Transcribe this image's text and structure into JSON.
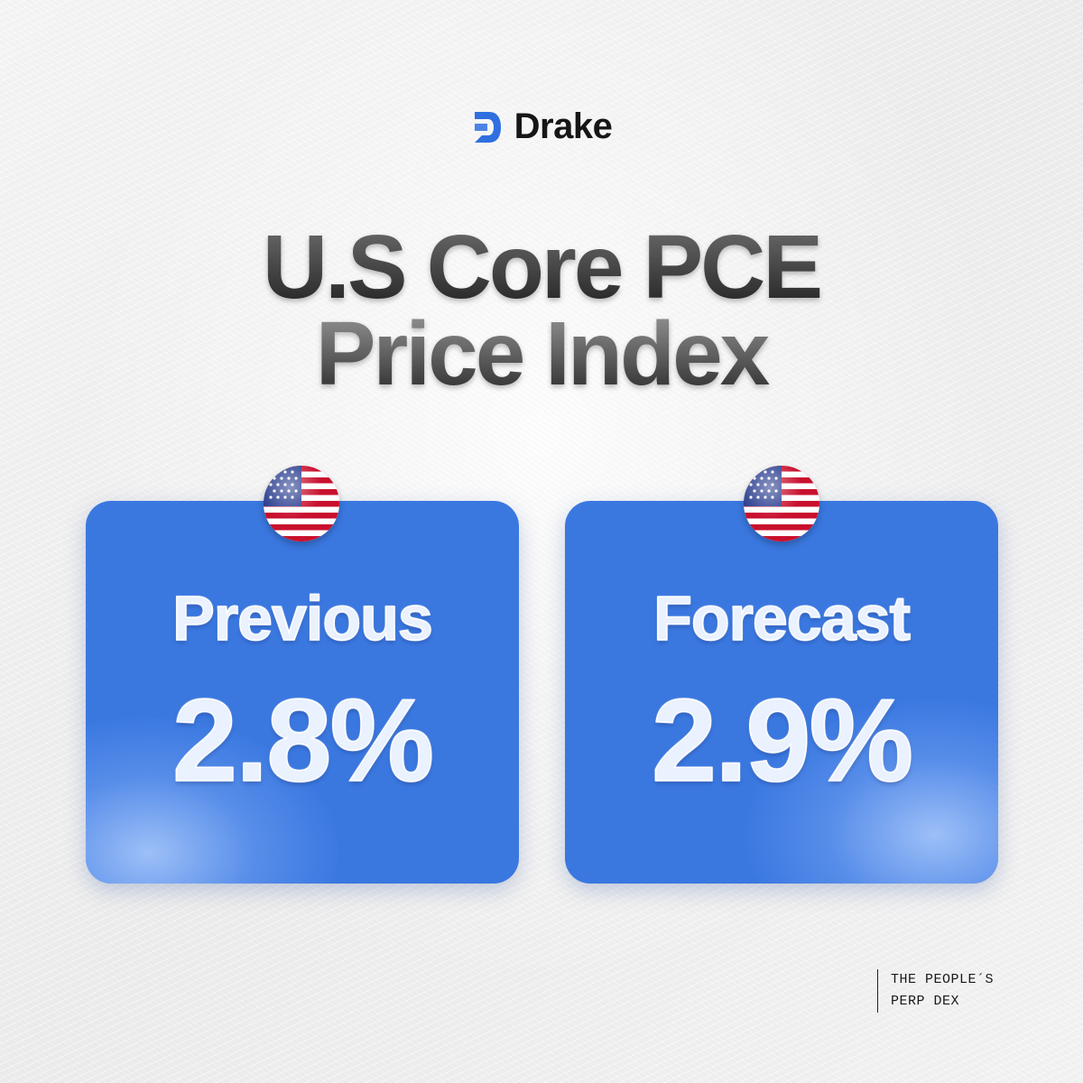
{
  "brand": {
    "name": "Drake",
    "color": "#2f6fe0"
  },
  "headline": {
    "line1_words": [
      "U.S",
      "Core",
      "PCE"
    ],
    "line2": "Price Index"
  },
  "cards": [
    {
      "label": "Previous",
      "value": "2.8%",
      "flag_icon": "us-flag-icon"
    },
    {
      "label": "Forecast",
      "value": "2.9%",
      "flag_icon": "us-flag-icon"
    }
  ],
  "tagline": {
    "line1": "THE PEOPLE´S",
    "line2": "PERP DEX"
  },
  "colors": {
    "card_bg": "#3a78e0",
    "background": "#f0f0f0",
    "headline": "#3a3a3a"
  }
}
